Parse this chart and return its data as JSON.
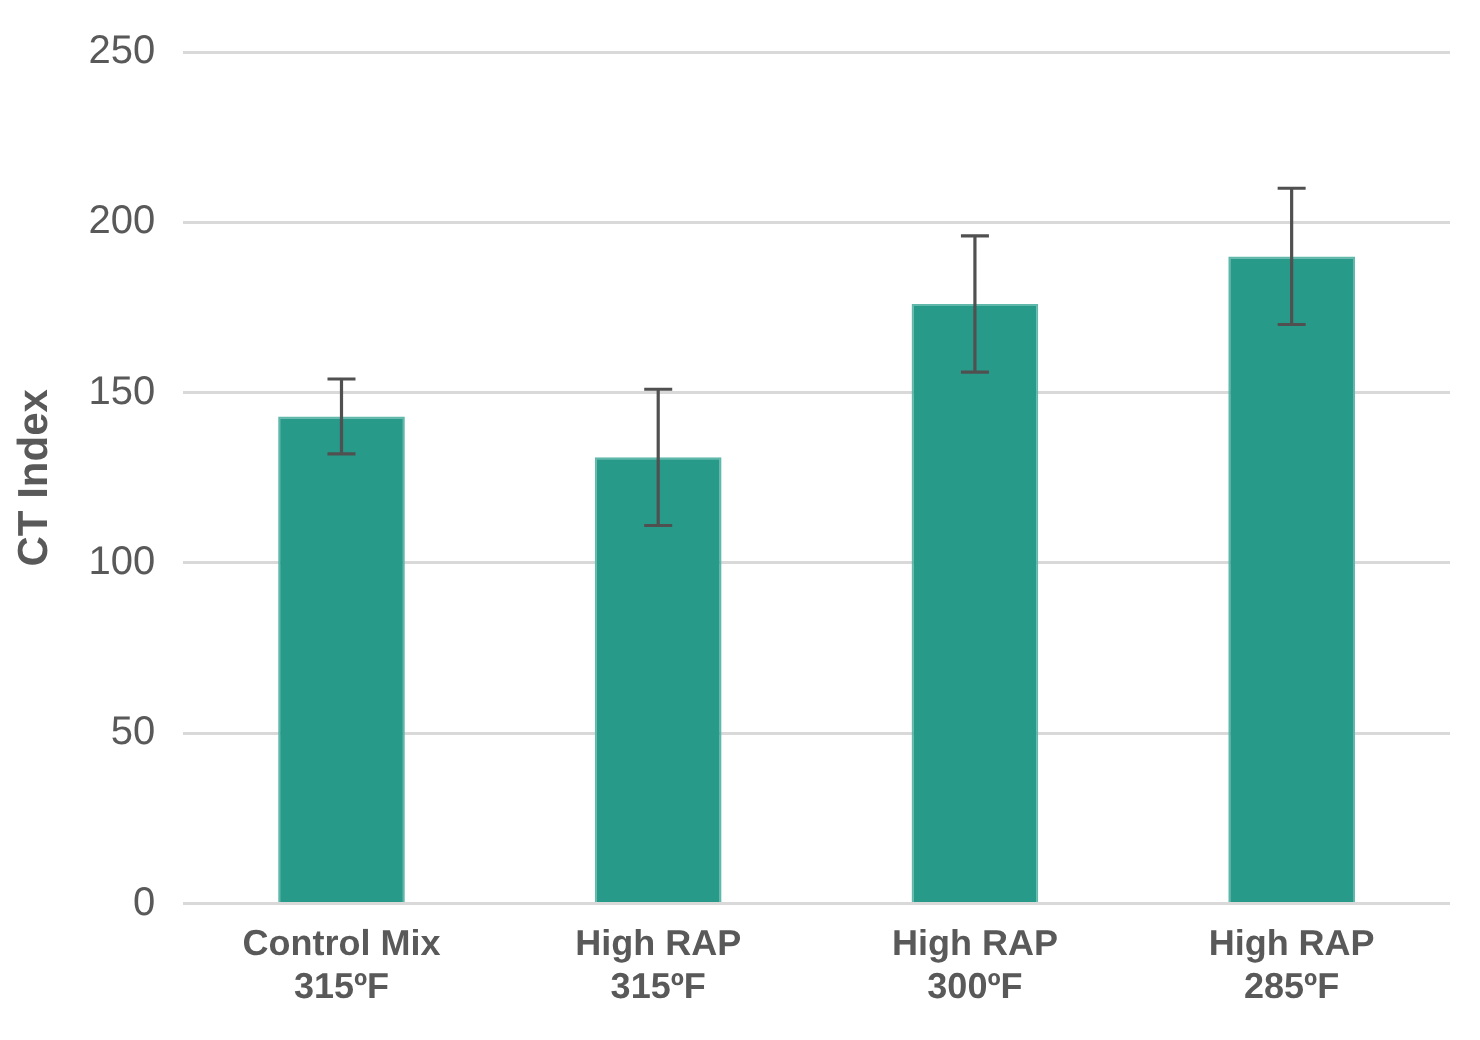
{
  "chart_data": {
    "type": "bar",
    "ylabel": "CT Index",
    "categories": [
      "Control Mix\n315ºF",
      "High RAP\n315ºF",
      "High RAP\n300ºF",
      "High RAP\n285ºF"
    ],
    "values": [
      143,
      131,
      176,
      190
    ],
    "errors": [
      11,
      20,
      20,
      20
    ],
    "color": "#279a89",
    "ylim": [
      0,
      250
    ],
    "yticks": [
      0,
      50,
      100,
      150,
      200,
      250
    ],
    "grid": "y",
    "legend": false
  }
}
